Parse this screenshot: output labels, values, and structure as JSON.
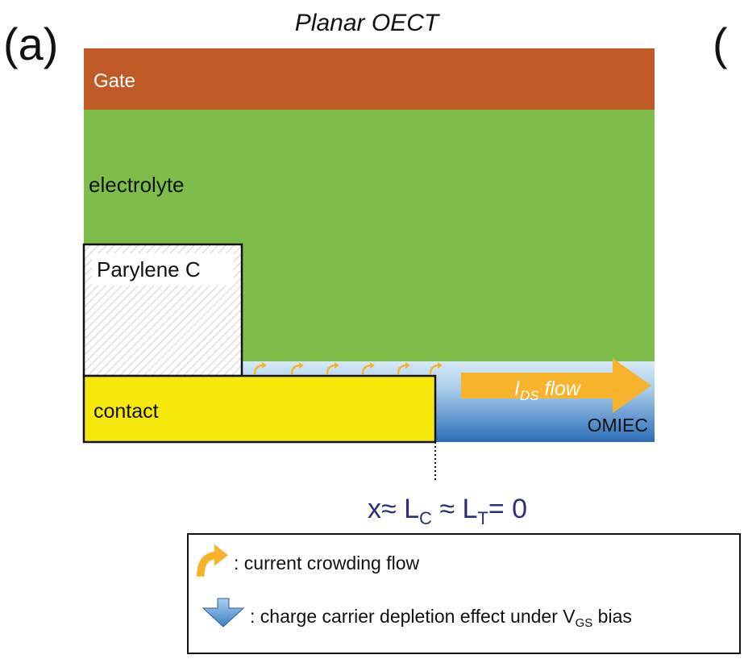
{
  "panel_label": "(a)",
  "right_panel_label_fragment": "(",
  "title": "Planar OECT",
  "layers": {
    "gate": "Gate",
    "electrolyte": "electrolyte",
    "parylene": "Parylene C",
    "contact": "contact",
    "omiec": "OMIEC"
  },
  "flow_label": {
    "main": "I",
    "sub": "DS",
    "suffix": " flow"
  },
  "equation": {
    "part1": "x≈ L",
    "sub1": "C",
    "part2": " ≈ L",
    "sub2": "T",
    "part3": "= 0"
  },
  "legend": {
    "crowding": ": current crowding flow",
    "depletion_prefix": ": charge carrier depletion effect under V",
    "depletion_sub": "GS",
    "depletion_suffix": " bias"
  },
  "colors": {
    "gate": "#c05a27",
    "electrolyte": "#7fbd4a",
    "contact": "#f5e80a",
    "omiec_top": "#cfe5f5",
    "omiec_bottom": "#2b6fb8",
    "arrow": "#f7b32b",
    "equation": "#2a2f7a"
  }
}
